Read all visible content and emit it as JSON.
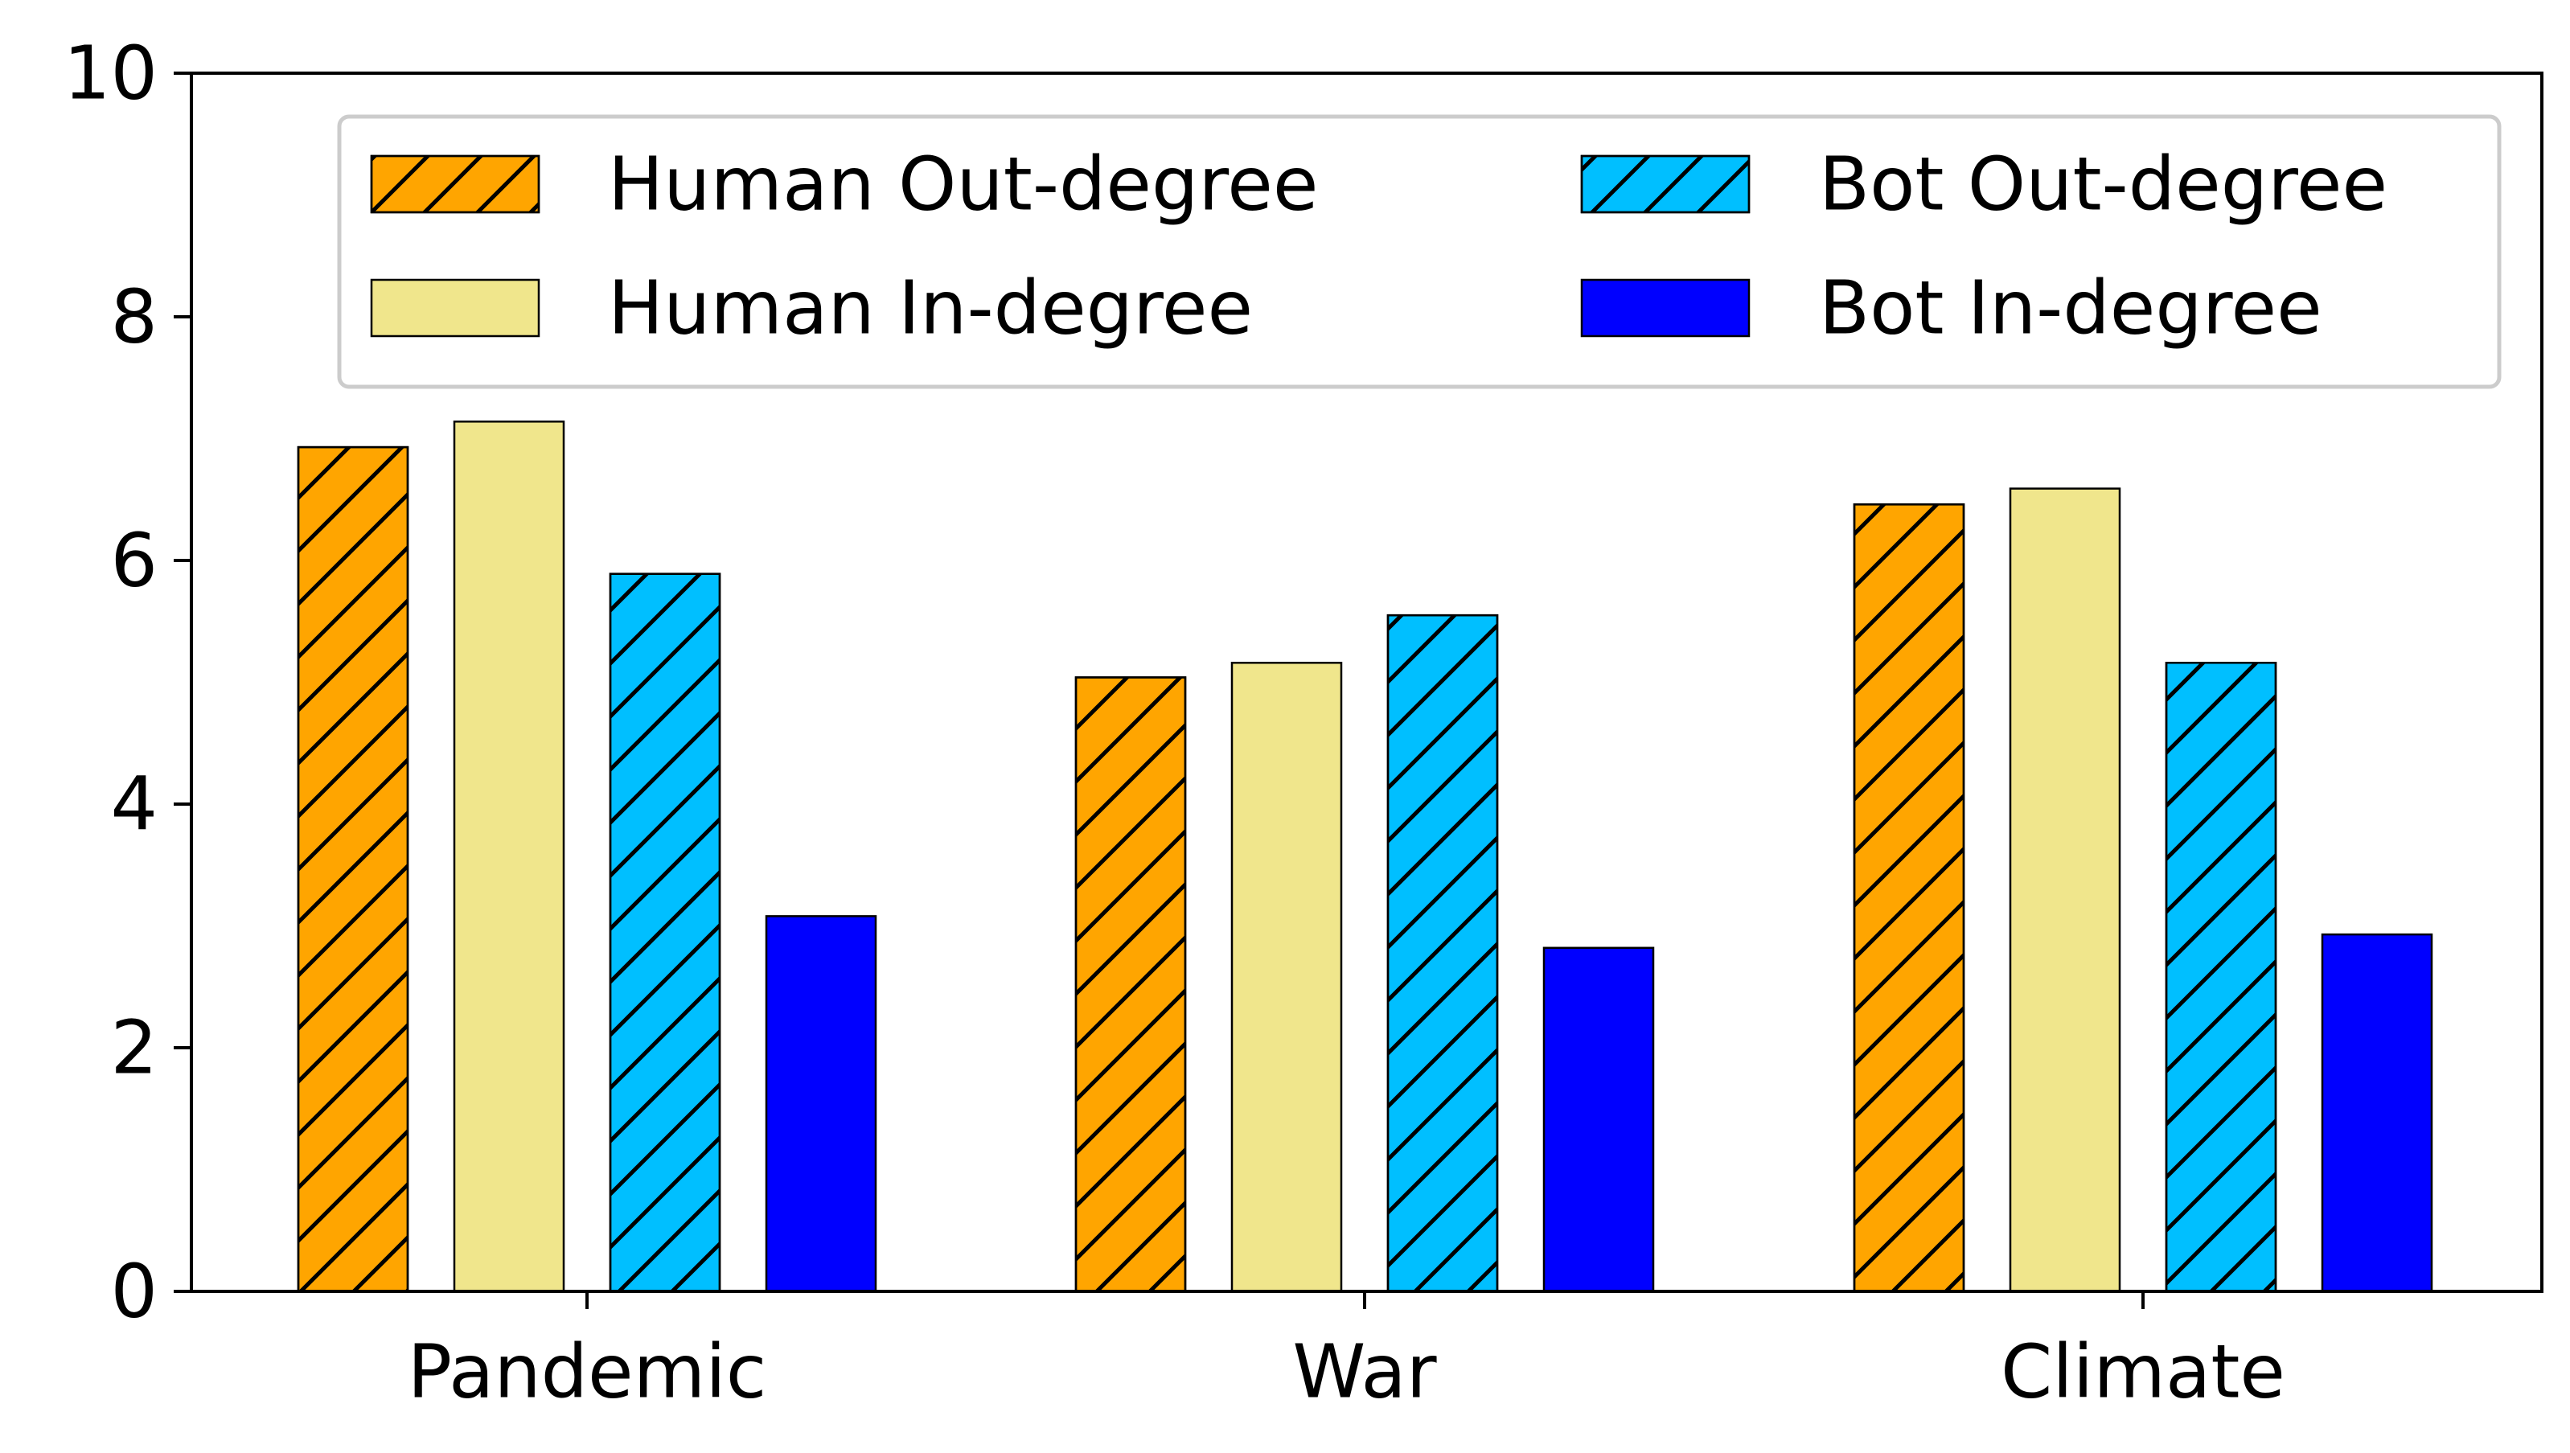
{
  "chart_data": {
    "type": "bar",
    "title": "",
    "xlabel": "",
    "ylabel": "",
    "categories": [
      "Pandemic",
      "War",
      "Climate"
    ],
    "ylim": [
      0,
      10
    ],
    "yticks": [
      "0",
      "2",
      "4",
      "6",
      "8",
      "10"
    ],
    "grid": false,
    "legend_position": "top",
    "legend_columns": 2,
    "series": [
      {
        "name": "Human Out-degree",
        "values": [
          6.93,
          5.04,
          6.46
        ],
        "color": "#FFA500",
        "hatch": "diagonal"
      },
      {
        "name": "Human In-degree",
        "values": [
          7.14,
          5.16,
          6.59
        ],
        "color": "#F0E68C",
        "hatch": "none"
      },
      {
        "name": "Bot Out-degree",
        "values": [
          5.89,
          5.55,
          5.16
        ],
        "color": "#00BFFF",
        "hatch": "diagonal"
      },
      {
        "name": "Bot In-degree",
        "values": [
          3.08,
          2.82,
          2.93
        ],
        "color": "#0000FF",
        "hatch": "none"
      }
    ]
  }
}
